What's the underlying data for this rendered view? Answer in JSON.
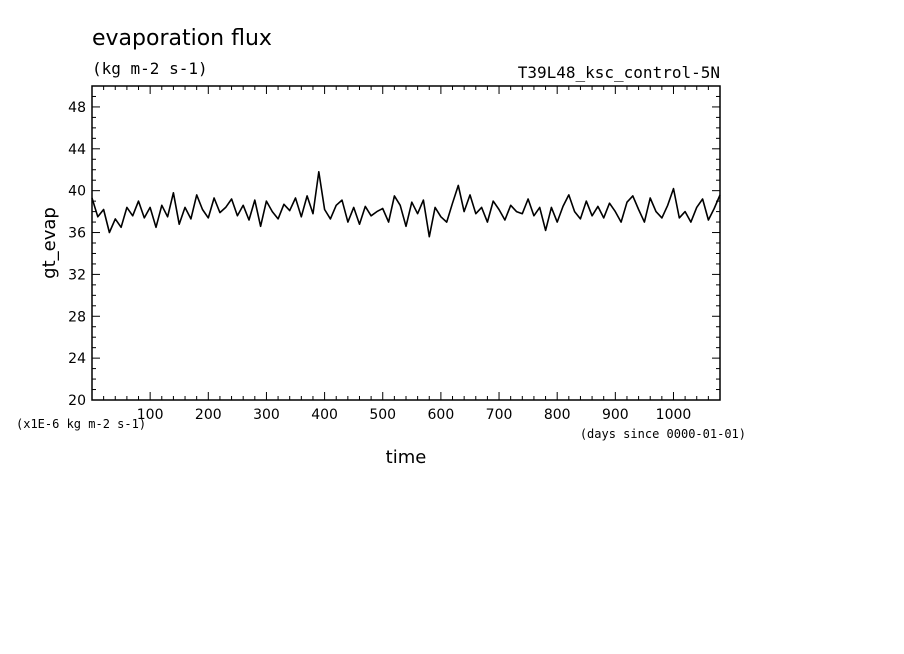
{
  "chart_data": {
    "type": "line",
    "title": "evaporation flux",
    "units": "(kg m-2 s-1)",
    "run_label": "T39L48_ksc_control-5N",
    "xlabel": "time",
    "x_units": "(days since 0000-01-01)",
    "ylabel": "gt_evap",
    "y_units": "(x1E-6 kg m-2 s-1)",
    "xlim": [
      0,
      1080
    ],
    "ylim": [
      20,
      50
    ],
    "x_ticks": [
      100,
      200,
      300,
      400,
      500,
      600,
      700,
      800,
      900,
      1000
    ],
    "y_ticks": [
      20,
      24,
      28,
      32,
      36,
      40,
      44,
      48
    ],
    "grid": false,
    "series": [
      {
        "x": [
          0,
          10,
          20,
          30,
          40,
          50,
          60,
          70,
          80,
          90,
          100,
          110,
          120,
          130,
          140,
          150,
          160,
          170,
          180,
          190,
          200,
          210,
          220,
          230,
          240,
          250,
          260,
          270,
          280,
          290,
          300,
          310,
          320,
          330,
          340,
          350,
          360,
          370,
          380,
          390,
          400,
          410,
          420,
          430,
          440,
          450,
          460,
          470,
          480,
          490,
          500,
          510,
          520,
          530,
          540,
          550,
          560,
          570,
          580,
          590,
          600,
          610,
          620,
          630,
          640,
          650,
          660,
          670,
          680,
          690,
          700,
          710,
          720,
          730,
          740,
          750,
          760,
          770,
          780,
          790,
          800,
          810,
          820,
          830,
          840,
          850,
          860,
          870,
          880,
          890,
          900,
          910,
          920,
          930,
          940,
          950,
          960,
          970,
          980,
          990,
          1000,
          1010,
          1020,
          1030,
          1040,
          1050,
          1060,
          1070,
          1080
        ],
        "y": [
          39.3,
          37.5,
          38.2,
          36.0,
          37.3,
          36.5,
          38.4,
          37.6,
          39.0,
          37.4,
          38.4,
          36.5,
          38.6,
          37.5,
          39.8,
          36.8,
          38.4,
          37.3,
          39.6,
          38.2,
          37.4,
          39.3,
          37.9,
          38.4,
          39.2,
          37.6,
          38.6,
          37.2,
          39.1,
          36.6,
          39.0,
          38.0,
          37.3,
          38.7,
          38.1,
          39.3,
          37.5,
          39.5,
          37.8,
          41.8,
          38.2,
          37.3,
          38.6,
          39.1,
          37.0,
          38.4,
          36.8,
          38.5,
          37.6,
          38.0,
          38.3,
          37.0,
          39.5,
          38.6,
          36.6,
          38.9,
          37.8,
          39.1,
          35.6,
          38.4,
          37.5,
          37.0,
          38.8,
          40.5,
          38.0,
          39.6,
          37.8,
          38.4,
          37.0,
          39.0,
          38.2,
          37.2,
          38.6,
          38.0,
          37.8,
          39.2,
          37.6,
          38.4,
          36.2,
          38.4,
          37.0,
          38.5,
          39.6,
          38.0,
          37.3,
          39.0,
          37.6,
          38.5,
          37.4,
          38.8,
          38.0,
          37.0,
          38.9,
          39.5,
          38.2,
          37.0,
          39.3,
          38.0,
          37.4,
          38.6,
          40.2,
          37.4,
          38.0,
          37.0,
          38.4,
          39.2,
          37.2,
          38.3,
          39.6
        ]
      }
    ]
  }
}
